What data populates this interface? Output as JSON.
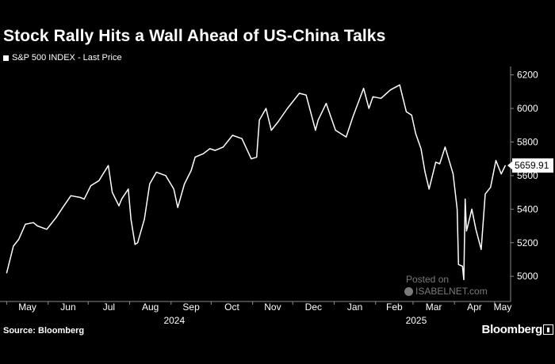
{
  "title": "Stock Rally Hits a Wall Ahead of US-China Talks",
  "legend_label": "S&P 500 INDEX - Last Price",
  "source": "Source: Bloomberg",
  "brand": "Bloomberg",
  "watermark": {
    "line1": "Posted on",
    "line2": "ISABELNET.com"
  },
  "colors": {
    "background": "#000000",
    "line": "#ffffff",
    "watermark": "#7a7a7a"
  },
  "chart_data": {
    "type": "line",
    "title": "Stock Rally Hits a Wall Ahead of US-China Talks",
    "series": [
      {
        "name": "S&P 500 INDEX - Last Price",
        "x": [
          "2024-05-01",
          "2024-05-06",
          "2024-05-10",
          "2024-05-15",
          "2024-05-21",
          "2024-05-24",
          "2024-05-31",
          "2024-06-07",
          "2024-06-12",
          "2024-06-18",
          "2024-06-25",
          "2024-06-28",
          "2024-07-03",
          "2024-07-09",
          "2024-07-16",
          "2024-07-19",
          "2024-07-24",
          "2024-07-26",
          "2024-07-31",
          "2024-08-02",
          "2024-08-05",
          "2024-08-07",
          "2024-08-12",
          "2024-08-16",
          "2024-08-21",
          "2024-08-28",
          "2024-09-03",
          "2024-09-06",
          "2024-09-11",
          "2024-09-16",
          "2024-09-19",
          "2024-09-25",
          "2024-09-30",
          "2024-10-04",
          "2024-10-10",
          "2024-10-17",
          "2024-10-24",
          "2024-10-31",
          "2024-11-04",
          "2024-11-06",
          "2024-11-11",
          "2024-11-15",
          "2024-11-20",
          "2024-11-27",
          "2024-12-06",
          "2024-12-11",
          "2024-12-18",
          "2024-12-20",
          "2024-12-26",
          "2025-01-02",
          "2025-01-10",
          "2025-01-15",
          "2025-01-23",
          "2025-01-27",
          "2025-01-30",
          "2025-02-05",
          "2025-02-12",
          "2025-02-19",
          "2025-02-24",
          "2025-02-28",
          "2025-03-03",
          "2025-03-07",
          "2025-03-10",
          "2025-03-13",
          "2025-03-18",
          "2025-03-21",
          "2025-03-25",
          "2025-03-31",
          "2025-04-03",
          "2025-04-04",
          "2025-04-07",
          "2025-04-08",
          "2025-04-09",
          "2025-04-10",
          "2025-04-14",
          "2025-04-17",
          "2025-04-21",
          "2025-04-24",
          "2025-04-28",
          "2025-05-02",
          "2025-05-06",
          "2025-05-09"
        ],
        "values": [
          5020,
          5180,
          5220,
          5310,
          5320,
          5300,
          5280,
          5350,
          5410,
          5480,
          5470,
          5460,
          5540,
          5570,
          5660,
          5500,
          5420,
          5460,
          5520,
          5340,
          5190,
          5200,
          5340,
          5550,
          5620,
          5600,
          5520,
          5410,
          5550,
          5630,
          5710,
          5730,
          5760,
          5750,
          5770,
          5840,
          5820,
          5700,
          5710,
          5930,
          6000,
          5870,
          5920,
          6000,
          6090,
          6080,
          5870,
          5930,
          6030,
          5870,
          5830,
          5950,
          6120,
          6000,
          6070,
          6060,
          6110,
          6140,
          5980,
          5960,
          5850,
          5760,
          5620,
          5520,
          5680,
          5670,
          5770,
          5610,
          5400,
          5070,
          5060,
          4980,
          5460,
          5270,
          5400,
          5280,
          5160,
          5490,
          5530,
          5690,
          5610,
          5659.91
        ]
      }
    ],
    "ylim": [
      4850,
      6250
    ],
    "yticks": [
      5000,
      5200,
      5400,
      5600,
      5800,
      6000,
      6200
    ],
    "ytick_labels": [
      "5000",
      "5200",
      "5400",
      "5600",
      "5800",
      "6000",
      "6200"
    ],
    "xticks": [
      {
        "label": "May",
        "date": "2024-05-01"
      },
      {
        "label": "Jun",
        "date": "2024-06-01"
      },
      {
        "label": "Jul",
        "date": "2024-07-01"
      },
      {
        "label": "Aug",
        "date": "2024-08-01"
      },
      {
        "label": "Sep",
        "date": "2024-09-01"
      },
      {
        "label": "Oct",
        "date": "2024-10-01"
      },
      {
        "label": "Nov",
        "date": "2024-11-01"
      },
      {
        "label": "Dec",
        "date": "2024-12-01"
      },
      {
        "label": "Jan",
        "date": "2025-01-01"
      },
      {
        "label": "Feb",
        "date": "2025-02-01"
      },
      {
        "label": "Mar",
        "date": "2025-03-01"
      },
      {
        "label": "Apr",
        "date": "2025-04-01"
      },
      {
        "label": "May",
        "date": "2025-05-01"
      }
    ],
    "year_labels": [
      {
        "label": "2024",
        "date": "2024-09-01"
      },
      {
        "label": "2025",
        "date": "2025-03-01"
      }
    ],
    "last_value_label": "5659.91",
    "xlabel": "",
    "ylabel": "",
    "grid": false
  }
}
